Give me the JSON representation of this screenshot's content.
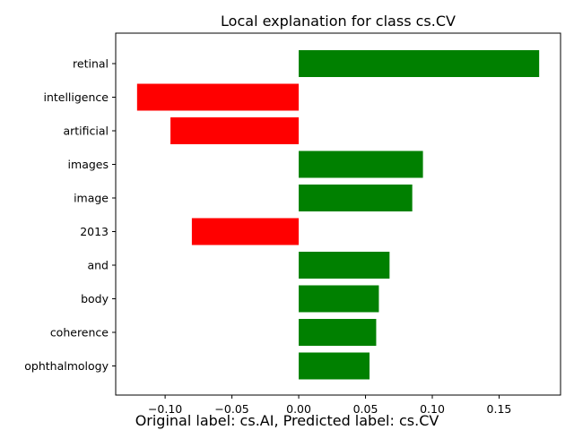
{
  "chart_data": {
    "type": "bar",
    "orientation": "horizontal",
    "title": "Local explanation for class cs.CV",
    "footer": "Original label: cs.AI, Predicted label: cs.CV",
    "categories": [
      "retinal",
      "intelligence",
      "artificial",
      "images",
      "image",
      "2013",
      "and",
      "body",
      "coherence",
      "ophthalmology"
    ],
    "values": [
      0.18,
      -0.121,
      -0.096,
      0.093,
      0.085,
      -0.08,
      0.068,
      0.06,
      0.058,
      0.053
    ],
    "colors": {
      "positive": "#008000",
      "negative": "#ff0000"
    },
    "xlim": [
      -0.137,
      0.196
    ],
    "xticks": [
      -0.1,
      -0.05,
      0.0,
      0.05,
      0.1,
      0.15
    ],
    "xtick_labels": [
      "−0.10",
      "−0.05",
      "0.00",
      "0.05",
      "0.10",
      "0.15"
    ],
    "grid": false,
    "legend": "none"
  }
}
